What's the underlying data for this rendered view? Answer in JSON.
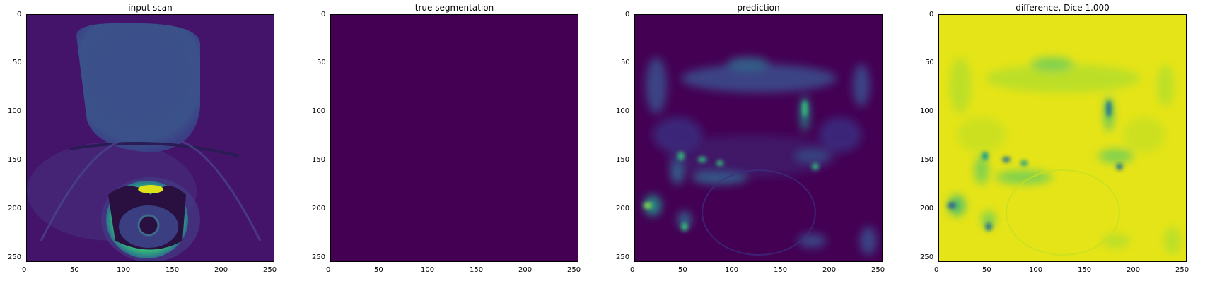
{
  "chart_data": [
    {
      "type": "heatmap",
      "title": "input scan",
      "colormap": "viridis",
      "xlim": [
        0,
        255
      ],
      "ylim": [
        255,
        0
      ],
      "xticks": [
        0,
        50,
        100,
        150,
        200,
        250
      ],
      "yticks": [
        0,
        50,
        100,
        150,
        200,
        250
      ]
    },
    {
      "type": "heatmap",
      "title": "true segmentation",
      "colormap": "viridis",
      "xlim": [
        0,
        255
      ],
      "ylim": [
        255,
        0
      ],
      "xticks": [
        0,
        50,
        100,
        150,
        200,
        250
      ],
      "yticks": [
        0,
        50,
        100,
        150,
        200,
        250
      ]
    },
    {
      "type": "heatmap",
      "title": "prediction",
      "colormap": "viridis",
      "xlim": [
        0,
        255
      ],
      "ylim": [
        255,
        0
      ],
      "xticks": [
        0,
        50,
        100,
        150,
        200,
        250
      ],
      "yticks": [
        0,
        50,
        100,
        150,
        200,
        250
      ]
    },
    {
      "type": "heatmap",
      "title": "difference, Dice 1.000",
      "colormap": "viridis",
      "xlim": [
        0,
        255
      ],
      "ylim": [
        255,
        0
      ],
      "xticks": [
        0,
        50,
        100,
        150,
        200,
        250
      ],
      "yticks": [
        0,
        50,
        100,
        150,
        200,
        250
      ]
    }
  ]
}
